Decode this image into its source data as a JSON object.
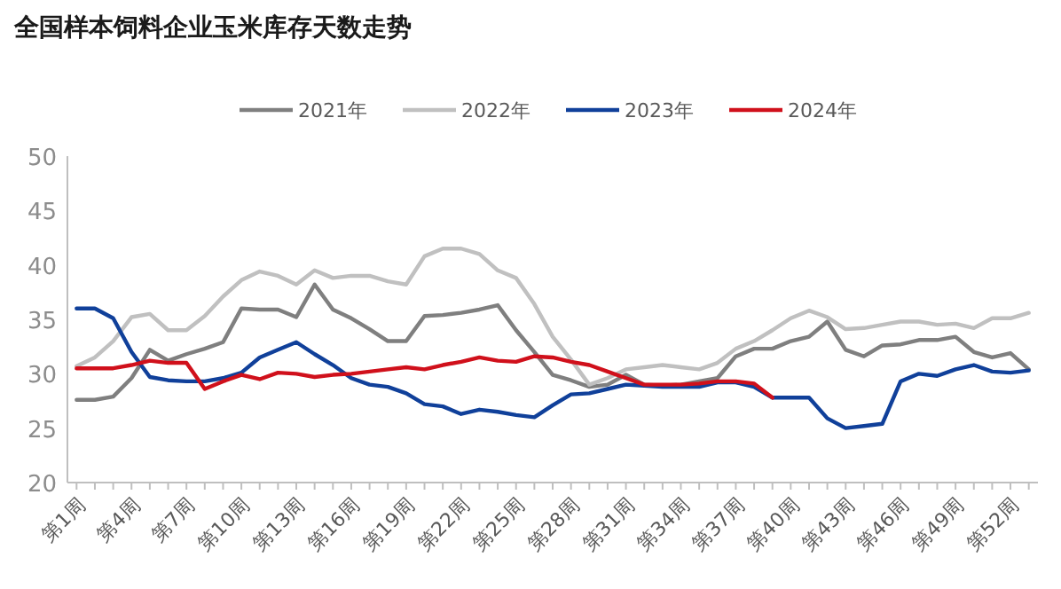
{
  "chart_data": {
    "type": "line",
    "title": "全国样本饲料企业玉米库存天数走势",
    "categories": [
      "第1周",
      null,
      null,
      "第4周",
      null,
      null,
      "第7周",
      null,
      null,
      "第10周",
      null,
      null,
      "第13周",
      null,
      null,
      "第16周",
      null,
      null,
      "第19周",
      null,
      null,
      "第22周",
      null,
      null,
      "第25周",
      null,
      null,
      "第28周",
      null,
      null,
      "第31周",
      null,
      null,
      "第34周",
      null,
      null,
      "第37周",
      null,
      null,
      "第40周",
      null,
      null,
      "第43周",
      null,
      null,
      "第46周",
      null,
      null,
      "第49周",
      null,
      null,
      "第52周",
      null
    ],
    "series": [
      {
        "name": "2021年",
        "color": "#7f7f7f",
        "values": [
          27.6,
          27.6,
          27.9,
          29.6,
          32.2,
          31.2,
          31.8,
          32.3,
          32.9,
          36.0,
          35.9,
          35.9,
          35.2,
          38.2,
          35.9,
          35.1,
          34.1,
          33.0,
          33.0,
          35.3,
          35.4,
          35.6,
          35.9,
          36.3,
          34.0,
          32.0,
          29.9,
          29.4,
          28.8,
          29.0,
          29.9,
          29.0,
          28.9,
          29.0,
          29.3,
          29.6,
          31.6,
          32.3,
          32.3,
          33.0,
          33.4,
          34.8,
          32.2,
          31.6,
          32.6,
          32.7,
          33.1,
          33.1,
          33.4,
          32.0,
          31.5,
          31.9,
          30.4
        ]
      },
      {
        "name": "2022年",
        "color": "#c0c0c0",
        "values": [
          30.7,
          31.5,
          33.0,
          35.2,
          35.5,
          34.0,
          34.0,
          35.3,
          37.1,
          38.6,
          39.4,
          39.0,
          38.2,
          39.5,
          38.8,
          39.0,
          39.0,
          38.5,
          38.2,
          40.8,
          41.5,
          41.5,
          41.0,
          39.5,
          38.8,
          36.4,
          33.4,
          31.3,
          29.0,
          29.6,
          30.4,
          30.6,
          30.8,
          30.6,
          30.4,
          31.0,
          32.3,
          33.0,
          34.0,
          35.1,
          35.8,
          35.2,
          34.1,
          34.2,
          34.5,
          34.8,
          34.8,
          34.5,
          34.6,
          34.2,
          35.1,
          35.1,
          35.6
        ]
      },
      {
        "name": "2023年",
        "color": "#10409a",
        "values": [
          36.0,
          36.0,
          35.1,
          32.0,
          29.7,
          29.4,
          29.3,
          29.3,
          29.6,
          30.1,
          31.5,
          32.2,
          32.9,
          31.8,
          30.8,
          29.6,
          29.0,
          28.8,
          28.2,
          27.2,
          27.0,
          26.3,
          26.7,
          26.5,
          26.2,
          26.0,
          27.1,
          28.1,
          28.2,
          28.6,
          29.0,
          28.9,
          28.8,
          28.8,
          28.8,
          29.2,
          29.2,
          28.8,
          27.8,
          27.8,
          27.8,
          25.9,
          25.0,
          25.2,
          25.4,
          29.3,
          30.0,
          29.8,
          30.4,
          30.8,
          30.2,
          30.1,
          30.3
        ]
      },
      {
        "name": "2024年",
        "color": "#d0101b",
        "values": [
          30.5,
          30.5,
          30.5,
          30.8,
          31.2,
          31.0,
          31.0,
          28.6,
          29.3,
          29.9,
          29.5,
          30.1,
          30.0,
          29.7,
          29.9,
          30.0,
          30.2,
          30.4,
          30.6,
          30.4,
          30.8,
          31.1,
          31.5,
          31.2,
          31.1,
          31.6,
          31.5,
          31.1,
          30.8,
          30.2,
          29.6,
          29.0,
          29.0,
          29.0,
          29.1,
          29.3,
          29.3,
          29.1,
          27.8,
          null,
          null,
          null,
          null,
          null,
          null,
          null,
          null,
          null,
          null,
          null,
          null,
          null,
          null
        ]
      }
    ],
    "ylim": [
      20,
      50
    ],
    "yticks": [
      20,
      25,
      30,
      35,
      40,
      45,
      50
    ],
    "legend": "top",
    "grid": false
  }
}
